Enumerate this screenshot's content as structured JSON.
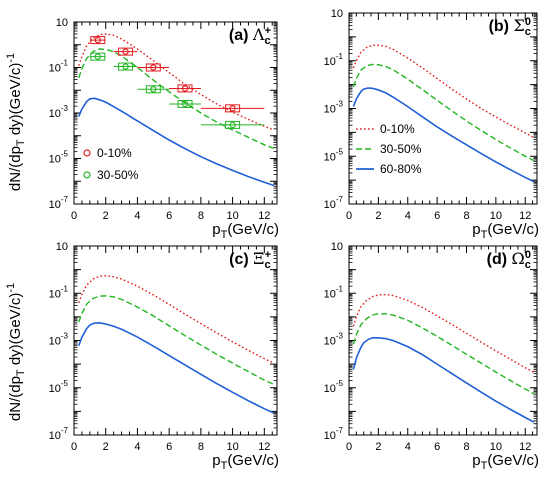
{
  "figure": {
    "ylabel": "dN/(dp_T dy)(GeV/c)^-1",
    "xlabel": "p_T(GeV/c)"
  },
  "colors": {
    "series_0_10": "#e41a1c",
    "series_30_50": "#22b522",
    "series_60_80": "#1f5fd6"
  },
  "chart_data": [
    {
      "type": "line",
      "panel_label": "(a)",
      "particle": "Λ",
      "particle_sup": "+",
      "particle_sub": "c",
      "xlim": [
        0,
        12.8
      ],
      "ylim_log10": [
        -7,
        1
      ],
      "yscale": "log",
      "xticks": [
        0,
        2,
        4,
        6,
        8,
        10,
        12
      ],
      "yticks": [
        "10",
        "10^-1",
        "10^-3",
        "10^-5",
        "10^-7"
      ],
      "series": [
        {
          "name": "0-10%",
          "style": "dotted",
          "color": "#e41a1c",
          "x": [
            0.3,
            0.5,
            0.8,
            1.2,
            1.6,
            2.0,
            2.5,
            3,
            4,
            5,
            6,
            7,
            8,
            9,
            10,
            11,
            12,
            12.6
          ],
          "y": [
            0.12,
            0.3,
            0.9,
            1.9,
            2.8,
            3.0,
            2.6,
            1.8,
            0.65,
            0.2,
            0.06,
            0.018,
            0.0065,
            0.0025,
            0.0011,
            0.00052,
            0.00026,
            0.00018
          ]
        },
        {
          "name": "30-50%",
          "style": "dashed",
          "color": "#22b522",
          "x": [
            0.3,
            0.5,
            0.8,
            1.2,
            1.6,
            2.0,
            2.5,
            3,
            4,
            5,
            6,
            7,
            8,
            9,
            10,
            11,
            12,
            12.6
          ],
          "y": [
            0.035,
            0.09,
            0.25,
            0.5,
            0.65,
            0.62,
            0.5,
            0.32,
            0.1,
            0.028,
            0.0085,
            0.0028,
            0.001,
            0.0004,
            0.00018,
            8.5e-05,
            4e-05,
            2.8e-05
          ]
        },
        {
          "name": "60-80%",
          "style": "solid",
          "color": "#1f5fd6",
          "x": [
            0.3,
            0.5,
            0.8,
            1.0,
            1.3,
            1.6,
            2.0,
            2.5,
            3,
            4,
            5,
            6,
            7,
            8,
            9,
            10,
            11,
            12,
            12.6
          ],
          "y": [
            0.0007,
            0.0015,
            0.0032,
            0.0042,
            0.0044,
            0.0038,
            0.003,
            0.0019,
            0.0012,
            0.00045,
            0.00017,
            6.5e-05,
            2.7e-05,
            1.2e-05,
            5.8e-06,
            3e-06,
            1.6e-06,
            9e-07,
            6.5e-07
          ]
        }
      ],
      "points": [
        {
          "name": "0-10%",
          "marker": "open-circle",
          "color": "#e41a1c",
          "x": [
            1.5,
            3.25,
            5.0,
            7.0,
            10.0
          ],
          "y": [
            1.6,
            0.5,
            0.1,
            0.012,
            0.0016
          ],
          "xerr": [
            0.5,
            0.75,
            1.0,
            1.0,
            2.0
          ]
        },
        {
          "name": "30-50%",
          "marker": "open-circle",
          "color": "#22b522",
          "x": [
            1.5,
            3.25,
            5.0,
            7.0,
            10.0
          ],
          "y": [
            0.3,
            0.11,
            0.011,
            0.0025,
            0.0003
          ],
          "xerr": [
            0.5,
            0.75,
            1.0,
            1.0,
            2.0
          ]
        }
      ],
      "legend": {
        "placement": "left-middle",
        "entries": [
          {
            "label": "0-10%",
            "symbol": "open-circle",
            "color": "#e41a1c"
          },
          {
            "label": "30-50%",
            "symbol": "open-circle",
            "color": "#22b522"
          }
        ]
      }
    },
    {
      "type": "line",
      "panel_label": "(b)",
      "particle": "Σ",
      "particle_sup": "0",
      "particle_sub": "c",
      "xlim": [
        0,
        12.8
      ],
      "ylim_log10": [
        -7,
        1
      ],
      "yscale": "log",
      "xticks": [
        0,
        2,
        4,
        6,
        8,
        10,
        12
      ],
      "yticks": [
        "10",
        "10^-1",
        "10^-3",
        "10^-5",
        "10^-7"
      ],
      "series": [
        {
          "name": "0-10%",
          "style": "dotted",
          "color": "#e41a1c",
          "x": [
            0.3,
            0.5,
            0.8,
            1.2,
            1.6,
            2.0,
            2.5,
            3,
            4,
            5,
            6,
            7,
            8,
            9,
            10,
            11,
            12,
            12.6
          ],
          "y": [
            0.05,
            0.1,
            0.22,
            0.36,
            0.44,
            0.45,
            0.4,
            0.3,
            0.13,
            0.05,
            0.018,
            0.0065,
            0.0025,
            0.001,
            0.00044,
            0.0002,
            9.5e-05,
            6e-05
          ]
        },
        {
          "name": "30-50%",
          "style": "dashed",
          "color": "#22b522",
          "x": [
            0.3,
            0.5,
            0.8,
            1.2,
            1.6,
            2.0,
            2.5,
            3,
            4,
            5,
            6,
            7,
            8,
            9,
            10,
            11,
            12,
            12.6
          ],
          "y": [
            0.008,
            0.018,
            0.04,
            0.062,
            0.07,
            0.068,
            0.058,
            0.042,
            0.017,
            0.0062,
            0.0022,
            0.0008,
            0.0003,
            0.00012,
            5e-05,
            2.2e-05,
            1e-05,
            6.5e-06
          ]
        },
        {
          "name": "60-80%",
          "style": "solid",
          "color": "#1f5fd6",
          "x": [
            0.3,
            0.5,
            0.8,
            1.0,
            1.3,
            1.6,
            2.0,
            2.5,
            3,
            4,
            5,
            6,
            7,
            8,
            9,
            10,
            11,
            12,
            12.6
          ],
          "y": [
            0.0012,
            0.0025,
            0.005,
            0.0065,
            0.0072,
            0.007,
            0.006,
            0.0045,
            0.003,
            0.0012,
            0.00045,
            0.00017,
            7e-05,
            3e-05,
            1.3e-05,
            5.8e-06,
            2.7e-06,
            1.3e-06,
            8.5e-07
          ]
        }
      ],
      "legend": {
        "placement": "left-bottom",
        "entries": [
          {
            "label": "0-10%",
            "symbol": "dotted",
            "color": "#e41a1c"
          },
          {
            "label": "30-50%",
            "symbol": "dashed",
            "color": "#22b522"
          },
          {
            "label": "60-80%",
            "symbol": "solid",
            "color": "#1f5fd6"
          }
        ]
      }
    },
    {
      "type": "line",
      "panel_label": "(c)",
      "particle": "Ξ",
      "particle_sup": "+",
      "particle_sub": "c",
      "xlim": [
        0,
        12.8
      ],
      "ylim_log10": [
        -7,
        1
      ],
      "yscale": "log",
      "xticks": [
        0,
        2,
        4,
        6,
        8,
        10,
        12
      ],
      "yticks": [
        "10",
        "10^-1",
        "10^-3",
        "10^-5",
        "10^-7"
      ],
      "series": [
        {
          "name": "0-10%",
          "style": "dotted",
          "color": "#e41a1c",
          "x": [
            0.3,
            0.5,
            0.8,
            1.2,
            1.6,
            2.0,
            2.5,
            3,
            4,
            5,
            6,
            7,
            8,
            9,
            10,
            11,
            12,
            12.6
          ],
          "y": [
            0.04,
            0.09,
            0.22,
            0.4,
            0.52,
            0.55,
            0.5,
            0.4,
            0.2,
            0.085,
            0.034,
            0.013,
            0.0052,
            0.0021,
            0.00088,
            0.00038,
            0.00017,
            0.00011
          ]
        },
        {
          "name": "30-50%",
          "style": "dashed",
          "color": "#22b522",
          "x": [
            0.3,
            0.5,
            0.8,
            1.2,
            1.6,
            2.0,
            2.5,
            3,
            4,
            5,
            6,
            7,
            8,
            9,
            10,
            11,
            12,
            12.6
          ],
          "y": [
            0.006,
            0.014,
            0.035,
            0.06,
            0.075,
            0.078,
            0.07,
            0.055,
            0.026,
            0.011,
            0.0042,
            0.0016,
            0.00064,
            0.00026,
            0.00011,
            4.8e-05,
            2.1e-05,
            1.4e-05
          ]
        },
        {
          "name": "60-80%",
          "style": "solid",
          "color": "#1f5fd6",
          "x": [
            0.3,
            0.5,
            0.8,
            1.0,
            1.3,
            1.6,
            2.0,
            2.5,
            3,
            4,
            5,
            6,
            7,
            8,
            9,
            10,
            11,
            12,
            12.6
          ],
          "y": [
            0.0006,
            0.0014,
            0.0032,
            0.0045,
            0.0055,
            0.0056,
            0.005,
            0.004,
            0.003,
            0.0014,
            0.00058,
            0.00023,
            9.2e-05,
            3.7e-05,
            1.5e-05,
            6.4e-06,
            2.8e-06,
            1.3e-06,
            8.5e-07
          ]
        }
      ]
    },
    {
      "type": "line",
      "panel_label": "(d)",
      "particle": "Ω",
      "particle_sup": "0",
      "particle_sub": "c",
      "xlim": [
        0,
        12.8
      ],
      "ylim_log10": [
        -7,
        1
      ],
      "yscale": "log",
      "xticks": [
        0,
        2,
        4,
        6,
        8,
        10,
        12
      ],
      "yticks": [
        "10",
        "10^-1",
        "10^-3",
        "10^-5",
        "10^-7"
      ],
      "series": [
        {
          "name": "0-10%",
          "style": "dotted",
          "color": "#e41a1c",
          "x": [
            0.3,
            0.5,
            0.8,
            1.2,
            1.6,
            2.0,
            2.5,
            3,
            4,
            5,
            6,
            7,
            8,
            9,
            10,
            11,
            12,
            12.6
          ],
          "y": [
            0.004,
            0.01,
            0.026,
            0.05,
            0.072,
            0.085,
            0.088,
            0.08,
            0.05,
            0.025,
            0.011,
            0.0048,
            0.002,
            0.00085,
            0.00036,
            0.00016,
            7e-05,
            4.5e-05
          ]
        },
        {
          "name": "30-50%",
          "style": "dashed",
          "color": "#22b522",
          "x": [
            0.3,
            0.5,
            0.8,
            1.2,
            1.6,
            2.0,
            2.5,
            3,
            4,
            5,
            6,
            7,
            8,
            9,
            10,
            11,
            12,
            12.6
          ],
          "y": [
            0.0007,
            0.0018,
            0.0045,
            0.0085,
            0.012,
            0.0135,
            0.0135,
            0.012,
            0.0072,
            0.0034,
            0.0015,
            0.00063,
            0.00026,
            0.00011,
            4.6e-05,
            2e-05,
            8.8e-06,
            5.6e-06
          ]
        },
        {
          "name": "60-80%",
          "style": "solid",
          "color": "#1f5fd6",
          "x": [
            0.3,
            0.5,
            0.8,
            1.0,
            1.3,
            1.6,
            2.0,
            2.5,
            3,
            4,
            5,
            6,
            7,
            8,
            9,
            10,
            11,
            12,
            12.6
          ],
          "y": [
            6e-05,
            0.00018,
            0.0005,
            0.0008,
            0.0011,
            0.0013,
            0.0013,
            0.0012,
            0.001,
            0.00055,
            0.00025,
            0.0001,
            4e-05,
            1.6e-05,
            6.5e-06,
            2.7e-06,
            1.2e-06,
            5.5e-07,
            3.5e-07
          ]
        }
      ]
    }
  ]
}
